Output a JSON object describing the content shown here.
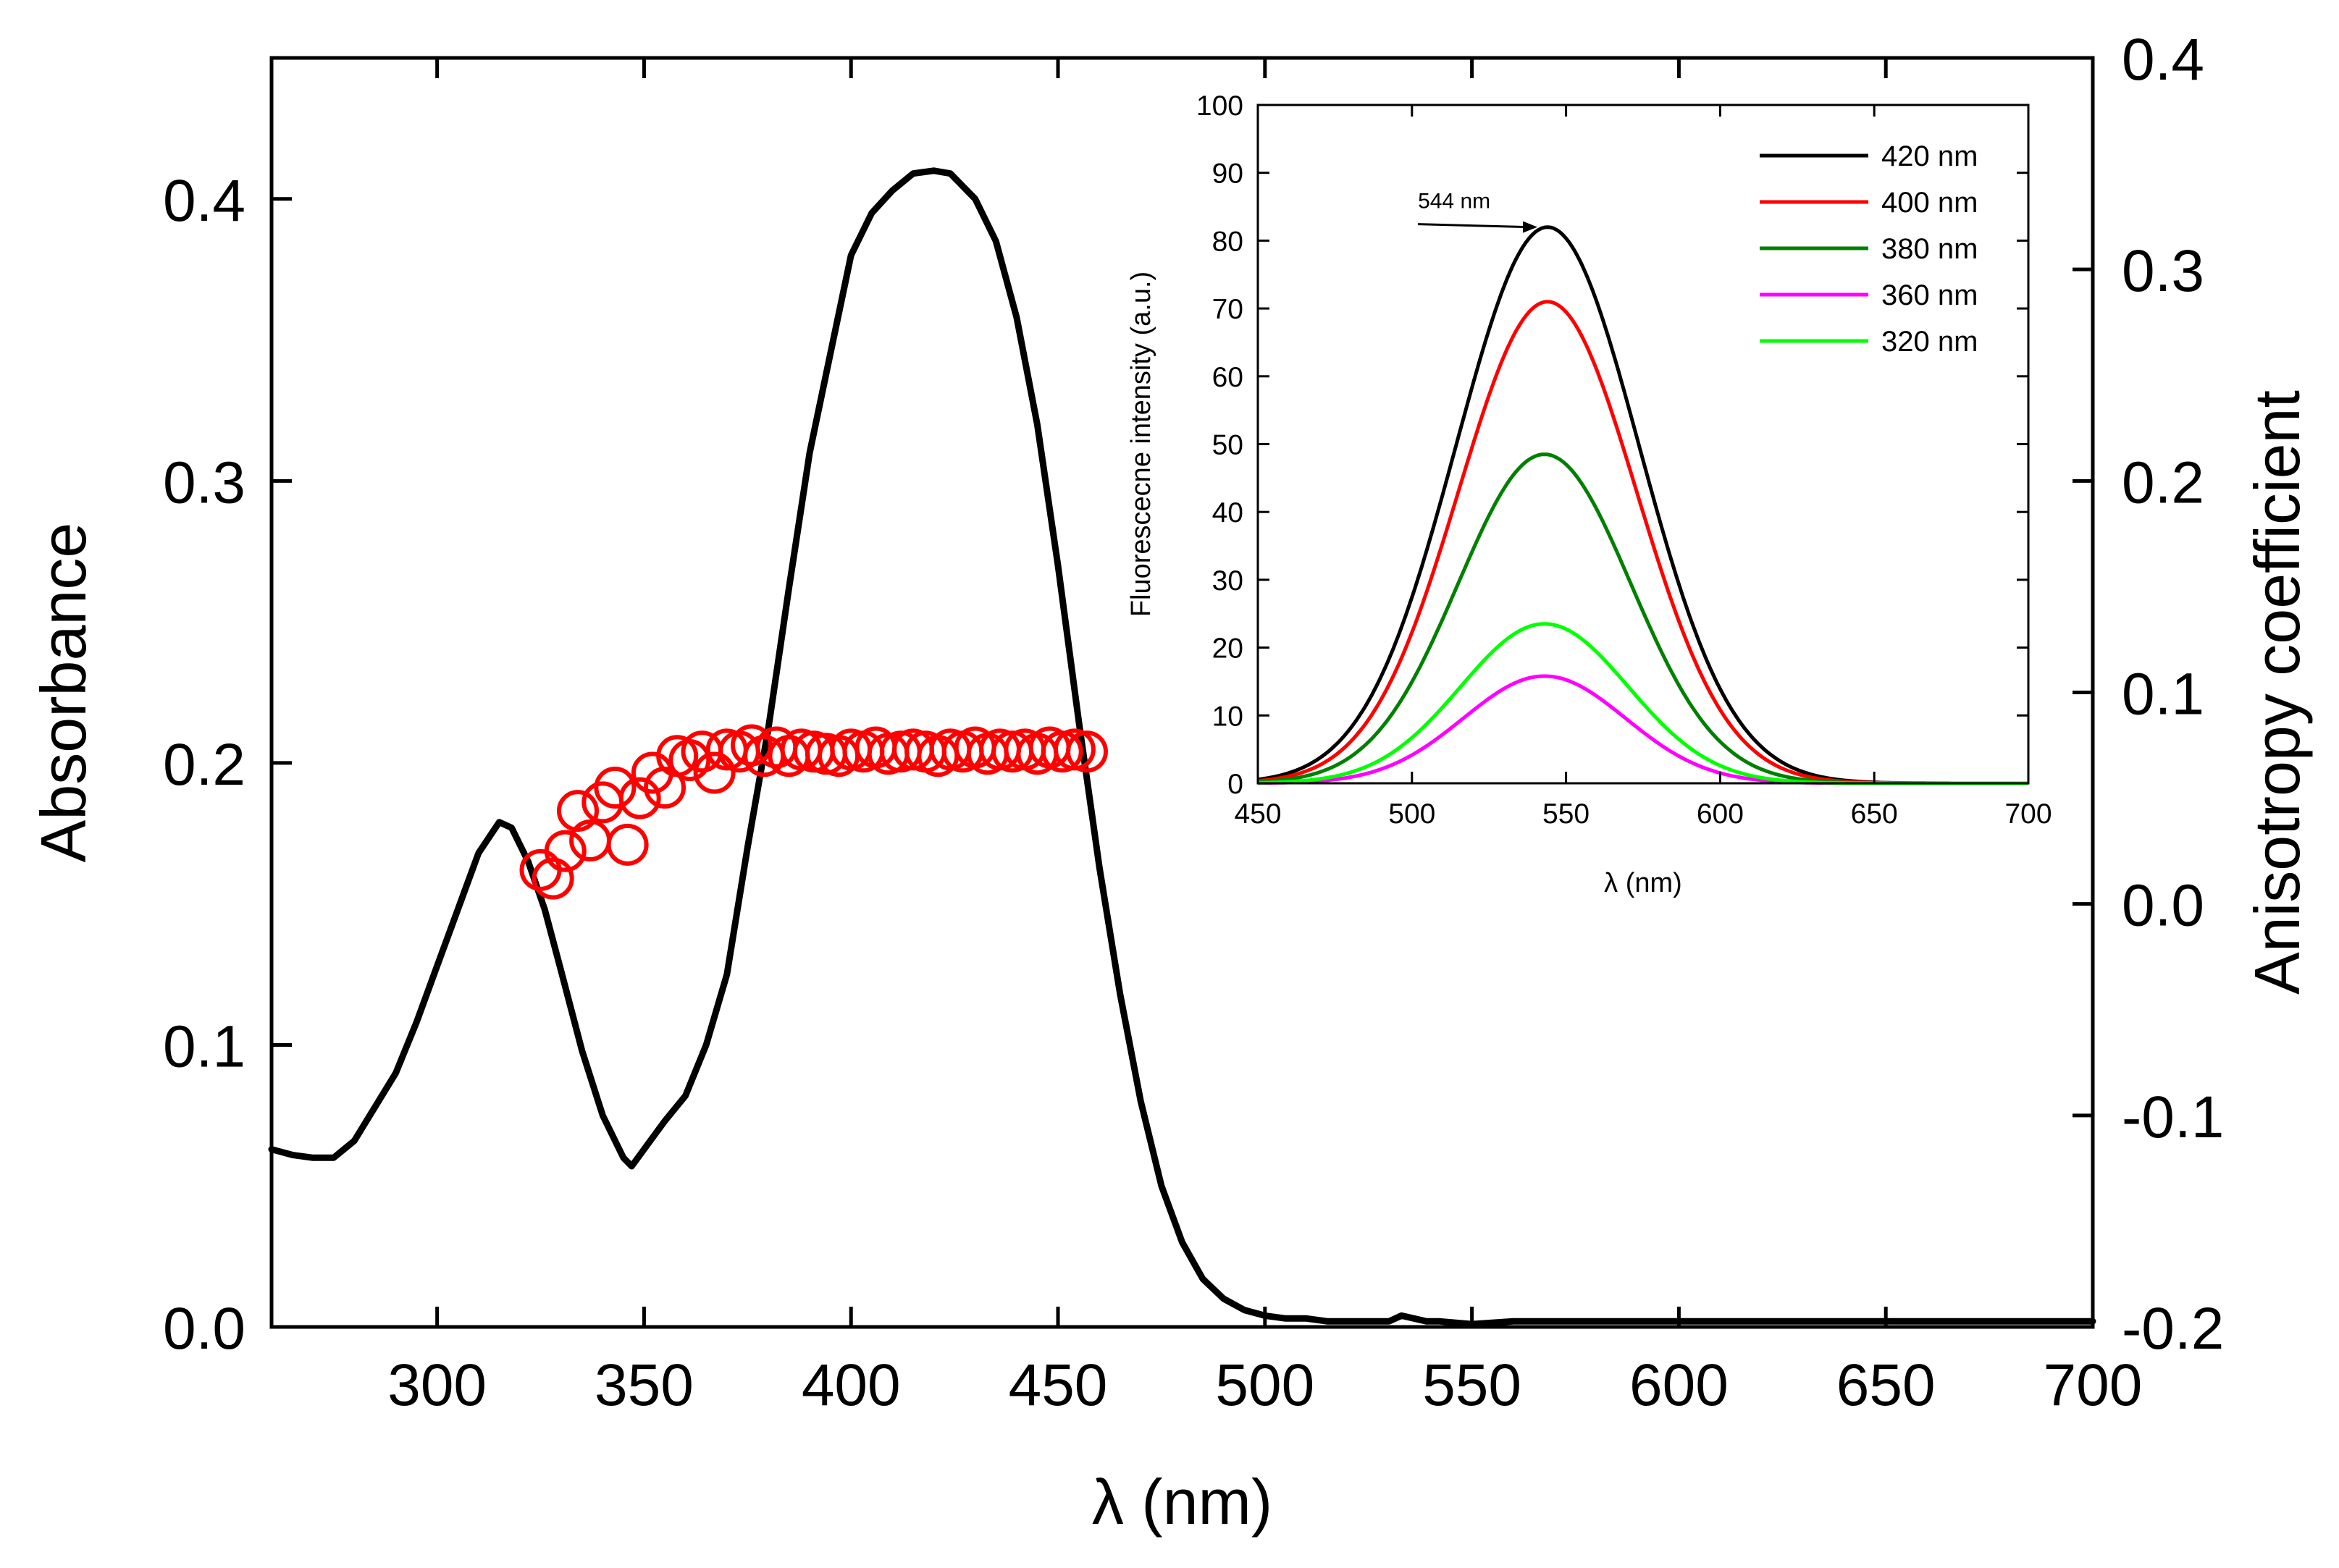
{
  "chart_data": [
    {
      "type": "line",
      "title": "",
      "xlabel": "λ (nm)",
      "ylabel": "Absorbance",
      "y2label": "Anisotropy coefficient",
      "xlim": [
        260,
        700
      ],
      "ylim": [
        0,
        0.45
      ],
      "y2lim": [
        -0.2,
        0.4
      ],
      "grid": false,
      "xticks": [
        300,
        350,
        400,
        450,
        500,
        550,
        600,
        650,
        700
      ],
      "xtick_labels": [
        "300",
        "350",
        "400",
        "450",
        "500",
        "550",
        "600",
        "650",
        "700"
      ],
      "yticks": [
        0,
        0.1,
        0.2,
        0.3,
        0.4
      ],
      "ytick_labels": [
        "0.0",
        "0.1",
        "0.2",
        "0.3",
        "0.4"
      ],
      "y2ticks": [
        -0.2,
        -0.1,
        0.0,
        0.1,
        0.2,
        0.3,
        0.4
      ],
      "y2tick_labels": [
        "-0.2",
        "-0.1",
        "0.0",
        "0.1",
        "0.2",
        "0.3",
        "0.4"
      ],
      "series": [
        {
          "name": "Absorbance",
          "type": "line",
          "axis": "left",
          "color": "#000000",
          "x": [
            260,
            265,
            270,
            275,
            280,
            285,
            290,
            295,
            300,
            305,
            310,
            315,
            318,
            322,
            326,
            330,
            335,
            340,
            345,
            347,
            350,
            355,
            360,
            365,
            370,
            375,
            380,
            385,
            390,
            395,
            400,
            405,
            410,
            415,
            420,
            424,
            430,
            435,
            440,
            445,
            450,
            455,
            460,
            465,
            470,
            475,
            480,
            485,
            490,
            495,
            500,
            505,
            510,
            515,
            520,
            530,
            533,
            536,
            539,
            542,
            550,
            560,
            580,
            600,
            620,
            640,
            660,
            680,
            700
          ],
          "y": [
            0.063,
            0.061,
            0.06,
            0.06,
            0.066,
            0.078,
            0.09,
            0.108,
            0.128,
            0.148,
            0.168,
            0.179,
            0.177,
            0.165,
            0.148,
            0.126,
            0.098,
            0.075,
            0.06,
            0.057,
            0.063,
            0.073,
            0.082,
            0.1,
            0.125,
            0.17,
            0.212,
            0.262,
            0.31,
            0.345,
            0.38,
            0.395,
            0.403,
            0.409,
            0.41,
            0.409,
            0.4,
            0.385,
            0.358,
            0.32,
            0.27,
            0.215,
            0.163,
            0.118,
            0.08,
            0.05,
            0.03,
            0.017,
            0.01,
            0.006,
            0.004,
            0.003,
            0.003,
            0.002,
            0.002,
            0.002,
            0.004,
            0.003,
            0.002,
            0.002,
            0.001,
            0.002,
            0.002,
            0.002,
            0.002,
            0.002,
            0.002,
            0.002,
            0.002
          ]
        },
        {
          "name": "Anisotropy coefficient",
          "type": "scatter",
          "axis": "right",
          "marker": "open-circle",
          "color": "#ff0000",
          "x": [
            325,
            328,
            331,
            334,
            337,
            340,
            343,
            346,
            349,
            352,
            355,
            358,
            361,
            364,
            367,
            370,
            373,
            376,
            379,
            382,
            385,
            388,
            391,
            394,
            397,
            400,
            403,
            406,
            409,
            412,
            415,
            418,
            421,
            424,
            427,
            430,
            433,
            436,
            439,
            442,
            445,
            448,
            451,
            454,
            457
          ],
          "y": [
            0.016,
            0.012,
            0.025,
            0.044,
            0.03,
            0.048,
            0.055,
            0.028,
            0.05,
            0.062,
            0.055,
            0.07,
            0.068,
            0.072,
            0.062,
            0.073,
            0.072,
            0.075,
            0.07,
            0.074,
            0.07,
            0.073,
            0.072,
            0.071,
            0.07,
            0.073,
            0.072,
            0.074,
            0.071,
            0.072,
            0.073,
            0.072,
            0.07,
            0.073,
            0.072,
            0.074,
            0.071,
            0.073,
            0.072,
            0.073,
            0.071,
            0.074,
            0.072,
            0.073,
            0.072
          ]
        }
      ]
    },
    {
      "type": "line",
      "title": "",
      "xlabel": "λ (nm)",
      "ylabel": "Fluorescecne intensity (a.u.)",
      "xlim": [
        450,
        700
      ],
      "ylim": [
        0,
        100
      ],
      "grid": false,
      "legend_position": "top-right",
      "xticks": [
        450,
        500,
        550,
        600,
        650,
        700
      ],
      "xtick_labels": [
        "450",
        "500",
        "550",
        "600",
        "650",
        "700"
      ],
      "yticks": [
        0,
        10,
        20,
        30,
        40,
        50,
        60,
        70,
        80,
        90,
        100
      ],
      "ytick_labels": [
        "0",
        "10",
        "20",
        "30",
        "40",
        "50",
        "60",
        "70",
        "80",
        "90",
        "100"
      ],
      "annotation": {
        "text": "544 nm",
        "x": 544,
        "y": 82
      },
      "series": [
        {
          "name": "420 nm",
          "color": "#000000",
          "peak_x": 544,
          "peak_y": 82,
          "fwhm": 70
        },
        {
          "name": "400 nm",
          "color": "#ff0000",
          "peak_x": 544,
          "peak_y": 71,
          "fwhm": 68
        },
        {
          "name": "380 nm",
          "color": "#008000",
          "peak_x": 543,
          "peak_y": 48.5,
          "fwhm": 66
        },
        {
          "name": "360 nm",
          "color": "#ff00ff",
          "peak_x": 543,
          "peak_y": 15.8,
          "fwhm": 62
        },
        {
          "name": "320 nm",
          "color": "#00ff00",
          "peak_x": 543,
          "peak_y": 23.5,
          "fwhm": 64
        }
      ]
    }
  ]
}
